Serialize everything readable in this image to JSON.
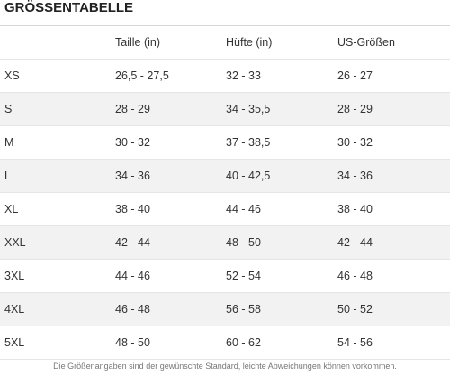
{
  "title": "GRÖSSENTABELLE",
  "table": {
    "headers": [
      "",
      "Taille (in)",
      "Hüfte (in)",
      "US-Größen"
    ],
    "rows": [
      [
        "XS",
        "26,5 - 27,5",
        "32 - 33",
        "26 - 27"
      ],
      [
        "S",
        "28 - 29",
        "34 - 35,5",
        "28 - 29"
      ],
      [
        "M",
        "30 - 32",
        "37 - 38,5",
        "30 - 32"
      ],
      [
        "L",
        "34 - 36",
        "40 - 42,5",
        "34 - 36"
      ],
      [
        "XL",
        "38 - 40",
        "44 - 46",
        "38 - 40"
      ],
      [
        "XXL",
        "42 - 44",
        "48 - 50",
        "42 - 44"
      ],
      [
        "3XL",
        "44 - 46",
        "52 - 54",
        "46 - 48"
      ],
      [
        "4XL",
        "46 - 48",
        "56 - 58",
        "50 - 52"
      ],
      [
        "5XL",
        "48 - 50",
        "60 - 62",
        "54 - 56"
      ]
    ]
  },
  "footnote": "Die Größenangaben sind der gewünschte Standard, leichte Abweichungen können vorkommen.",
  "colors": {
    "shaded_row": "#f2f2f2",
    "text": "#333333"
  }
}
